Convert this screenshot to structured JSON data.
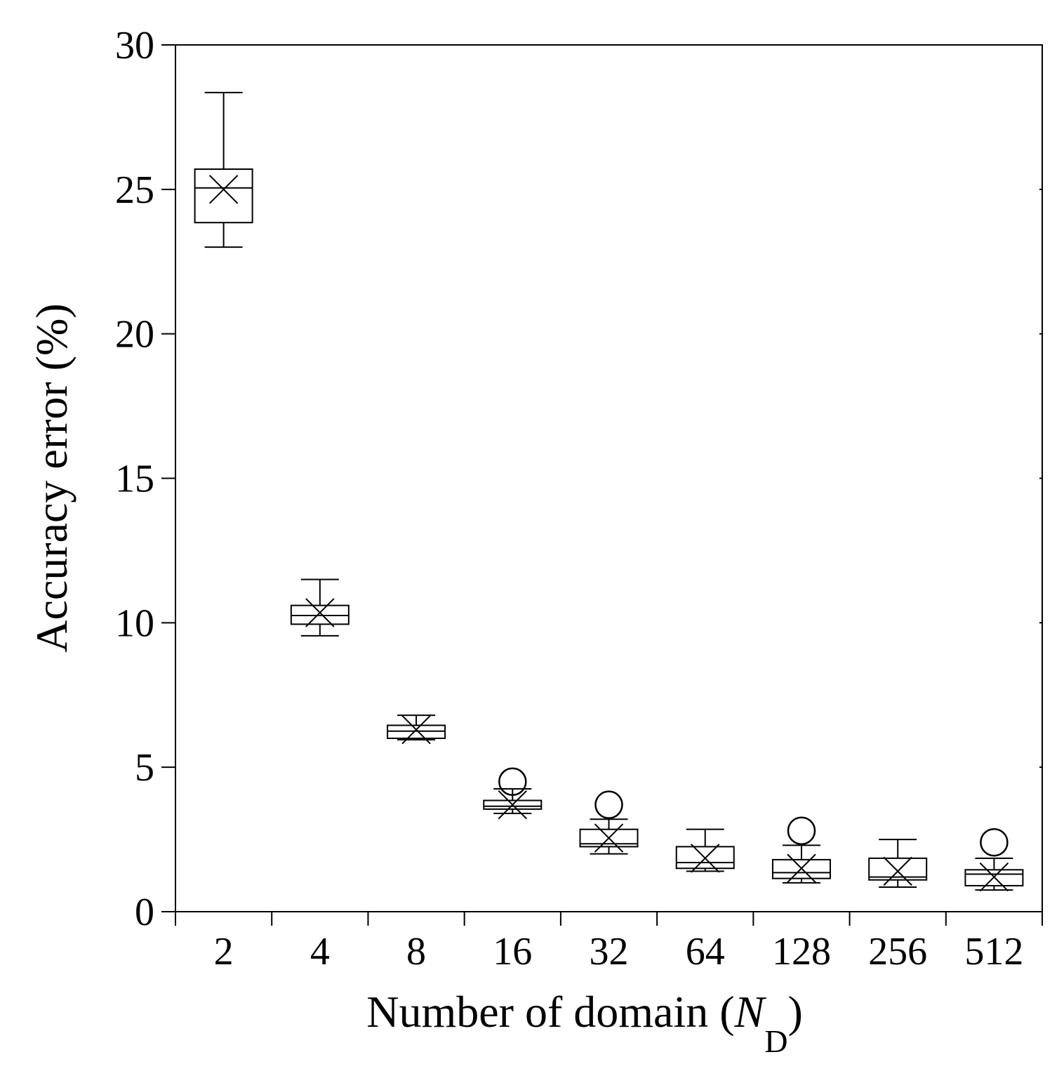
{
  "chart_data": {
    "type": "box",
    "xlabel": {
      "main": "Number of domain (",
      "italic": "N",
      "sub": "D",
      "close": ")"
    },
    "ylabel": "Accuracy error (%)",
    "ylim": [
      0,
      30
    ],
    "yticks": [
      0,
      5,
      10,
      15,
      20,
      25,
      30
    ],
    "categories": [
      "2",
      "4",
      "8",
      "16",
      "32",
      "64",
      "128",
      "256",
      "512"
    ],
    "boxes": [
      {
        "category": "2",
        "min": 23.0,
        "q1": 23.85,
        "median": 25.05,
        "q3": 25.7,
        "max": 28.35,
        "mean": 25.0,
        "outliers": []
      },
      {
        "category": "4",
        "min": 9.55,
        "q1": 9.95,
        "median": 10.25,
        "q3": 10.6,
        "max": 11.5,
        "mean": 10.35,
        "outliers": []
      },
      {
        "category": "8",
        "min": 5.95,
        "q1": 6.0,
        "median": 6.25,
        "q3": 6.45,
        "max": 6.8,
        "mean": 6.3,
        "outliers": []
      },
      {
        "category": "16",
        "min": 3.4,
        "q1": 3.55,
        "median": 3.65,
        "q3": 3.85,
        "max": 4.25,
        "mean": 3.7,
        "outliers": [
          4.5
        ]
      },
      {
        "category": "32",
        "min": 2.0,
        "q1": 2.25,
        "median": 2.35,
        "q3": 2.85,
        "max": 3.2,
        "mean": 2.55,
        "outliers": [
          3.7
        ]
      },
      {
        "category": "64",
        "min": 1.4,
        "q1": 1.5,
        "median": 1.7,
        "q3": 2.25,
        "max": 2.85,
        "mean": 1.85,
        "outliers": []
      },
      {
        "category": "128",
        "min": 1.0,
        "q1": 1.15,
        "median": 1.35,
        "q3": 1.8,
        "max": 2.3,
        "mean": 1.5,
        "outliers": [
          2.8
        ]
      },
      {
        "category": "256",
        "min": 0.85,
        "q1": 1.1,
        "median": 1.2,
        "q3": 1.85,
        "max": 2.5,
        "mean": 1.4,
        "outliers": []
      },
      {
        "category": "512",
        "min": 0.75,
        "q1": 0.9,
        "median": 1.3,
        "q3": 1.45,
        "max": 1.85,
        "mean": 1.2,
        "outliers": [
          2.4
        ]
      }
    ],
    "grid": false,
    "legend": "none"
  }
}
